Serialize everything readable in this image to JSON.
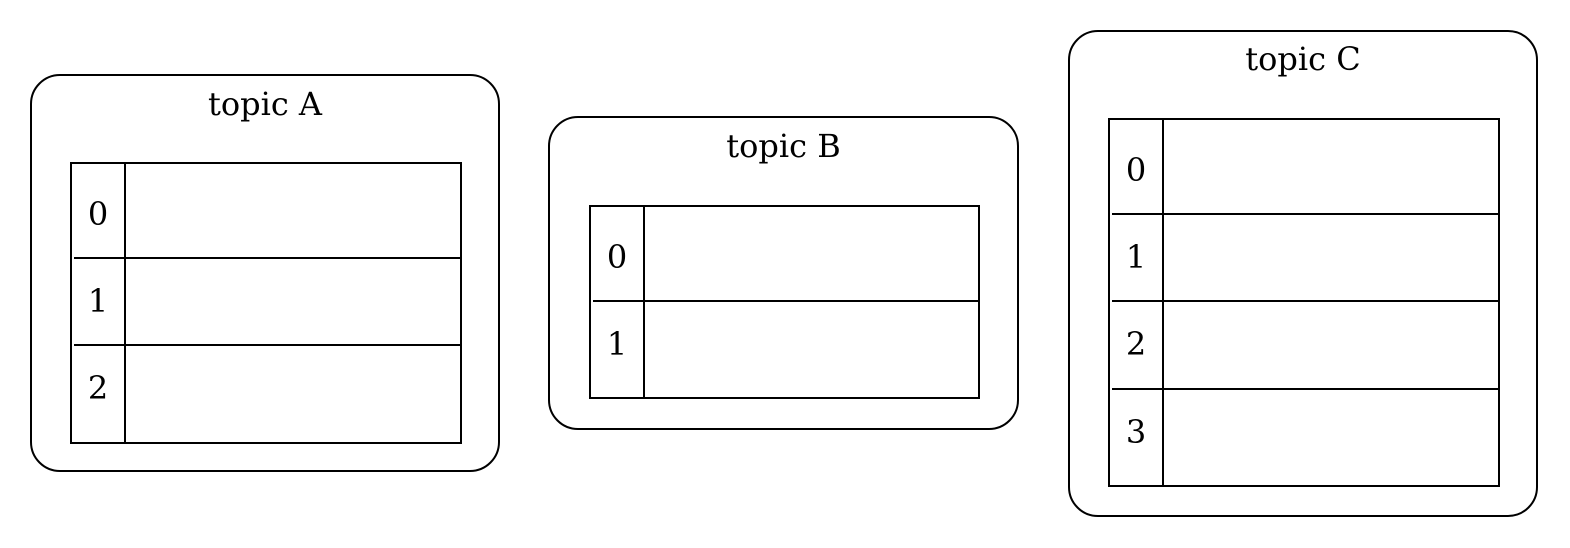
{
  "topics": [
    {
      "title": "topic A",
      "partitions": [
        "0",
        "1",
        "2"
      ]
    },
    {
      "title": "topic B",
      "partitions": [
        "0",
        "1"
      ]
    },
    {
      "title": "topic C",
      "partitions": [
        "0",
        "1",
        "2",
        "3"
      ]
    }
  ]
}
